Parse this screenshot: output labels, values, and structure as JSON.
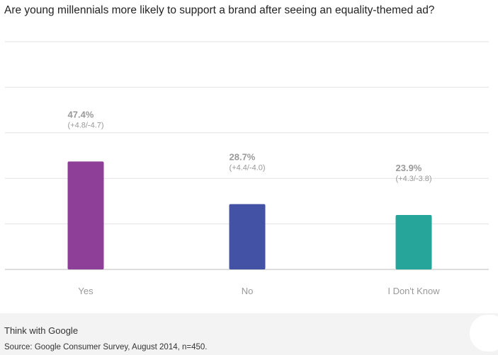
{
  "chart_data": {
    "type": "bar",
    "title": "Are young millennials more likely to support a brand after seeing an equality-themed ad?",
    "categories": [
      "Yes",
      "No",
      "I Don't Know"
    ],
    "values": [
      47.4,
      28.7,
      23.9
    ],
    "value_labels": [
      "47.4%",
      "28.7%",
      "23.9%"
    ],
    "error_labels": [
      "(+4.8/-4.7)",
      "(+4.4/-4.0)",
      "(+4.3/-3.8)"
    ],
    "colors": [
      "#8e3f98",
      "#4352a5",
      "#26a69a"
    ],
    "ylim": [
      0,
      100
    ],
    "grid": true,
    "xlabel": "",
    "ylabel": ""
  },
  "footer": {
    "brand": "Think with Google",
    "source": "Source: Google Consumer Survey, August 2014, n=450."
  }
}
